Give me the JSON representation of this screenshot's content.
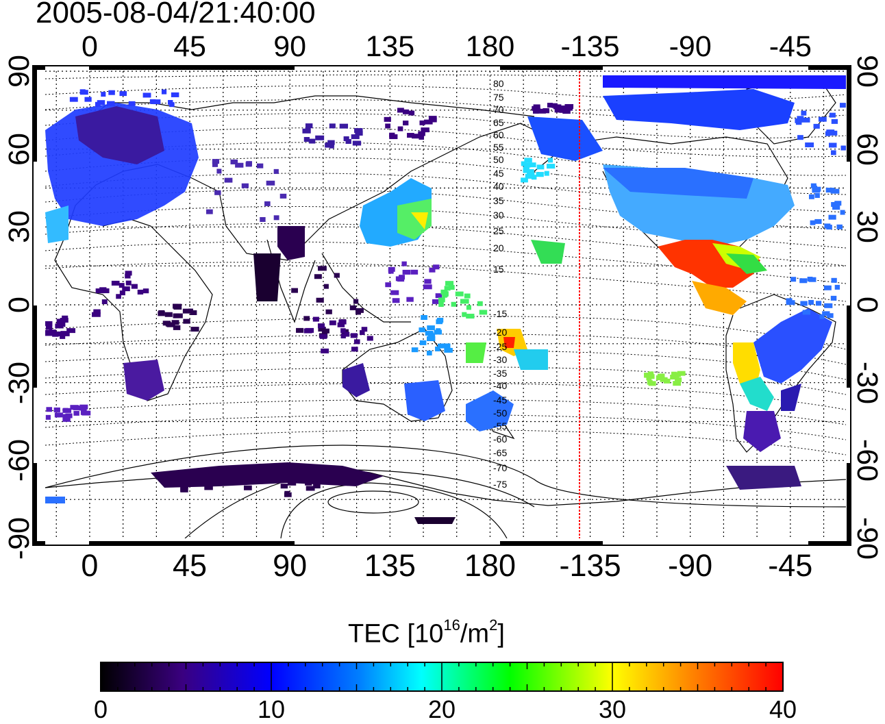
{
  "title": "2005-08-04/21:40:00",
  "axes": {
    "top_lon_labels": [
      "0",
      "45",
      "90",
      "135",
      "180",
      "-135",
      "-90",
      "-45"
    ],
    "bottom_lon_labels": [
      "0",
      "45",
      "90",
      "135",
      "180",
      "-135",
      "-90",
      "-45"
    ],
    "left_lat_labels": [
      "90",
      "60",
      "30",
      "0",
      "-30",
      "-60",
      "-90"
    ],
    "right_lat_labels": [
      "90",
      "60",
      "30",
      "0",
      "-30",
      "-60",
      "-90"
    ]
  },
  "contour_labels_north": [
    "80",
    "75",
    "70",
    "65",
    "60",
    "55",
    "50",
    "45",
    "40",
    "35",
    "30",
    "25",
    "20",
    "15"
  ],
  "contour_labels_south": [
    "-15",
    "-20",
    "-25",
    "-30",
    "-35",
    "-40",
    "-45",
    "-50",
    "-55",
    "-60",
    "-65",
    "-70",
    "-75"
  ],
  "terminator_longitude": -145,
  "colorbar": {
    "title_prefix": "TEC  [10",
    "title_exp": "16",
    "title_mid": "/m",
    "title_exp2": "2",
    "title_suffix": "]",
    "min": 0,
    "max": 40,
    "tick_labels": [
      "0",
      "10",
      "20",
      "30",
      "40"
    ],
    "colors": [
      "#000000",
      "#3a0080",
      "#0000ff",
      "#00ffff",
      "#00ff00",
      "#ffff00",
      "#ff0000"
    ]
  },
  "tec_regions": [
    {
      "name": "europe",
      "tec": 9
    },
    {
      "name": "north-america",
      "tec": 14
    },
    {
      "name": "central-america",
      "tec": 36
    },
    {
      "name": "south-america",
      "tec": 10
    },
    {
      "name": "japan",
      "tec": 20
    },
    {
      "name": "australia",
      "tec": 12
    },
    {
      "name": "new-zealand",
      "tec": 13
    },
    {
      "name": "pacific-islands",
      "tec": 24
    },
    {
      "name": "south-africa",
      "tec": 5
    },
    {
      "name": "antarctica",
      "tec": 3
    },
    {
      "name": "india",
      "tec": 1
    },
    {
      "name": "arctic",
      "tec": 10
    }
  ]
}
